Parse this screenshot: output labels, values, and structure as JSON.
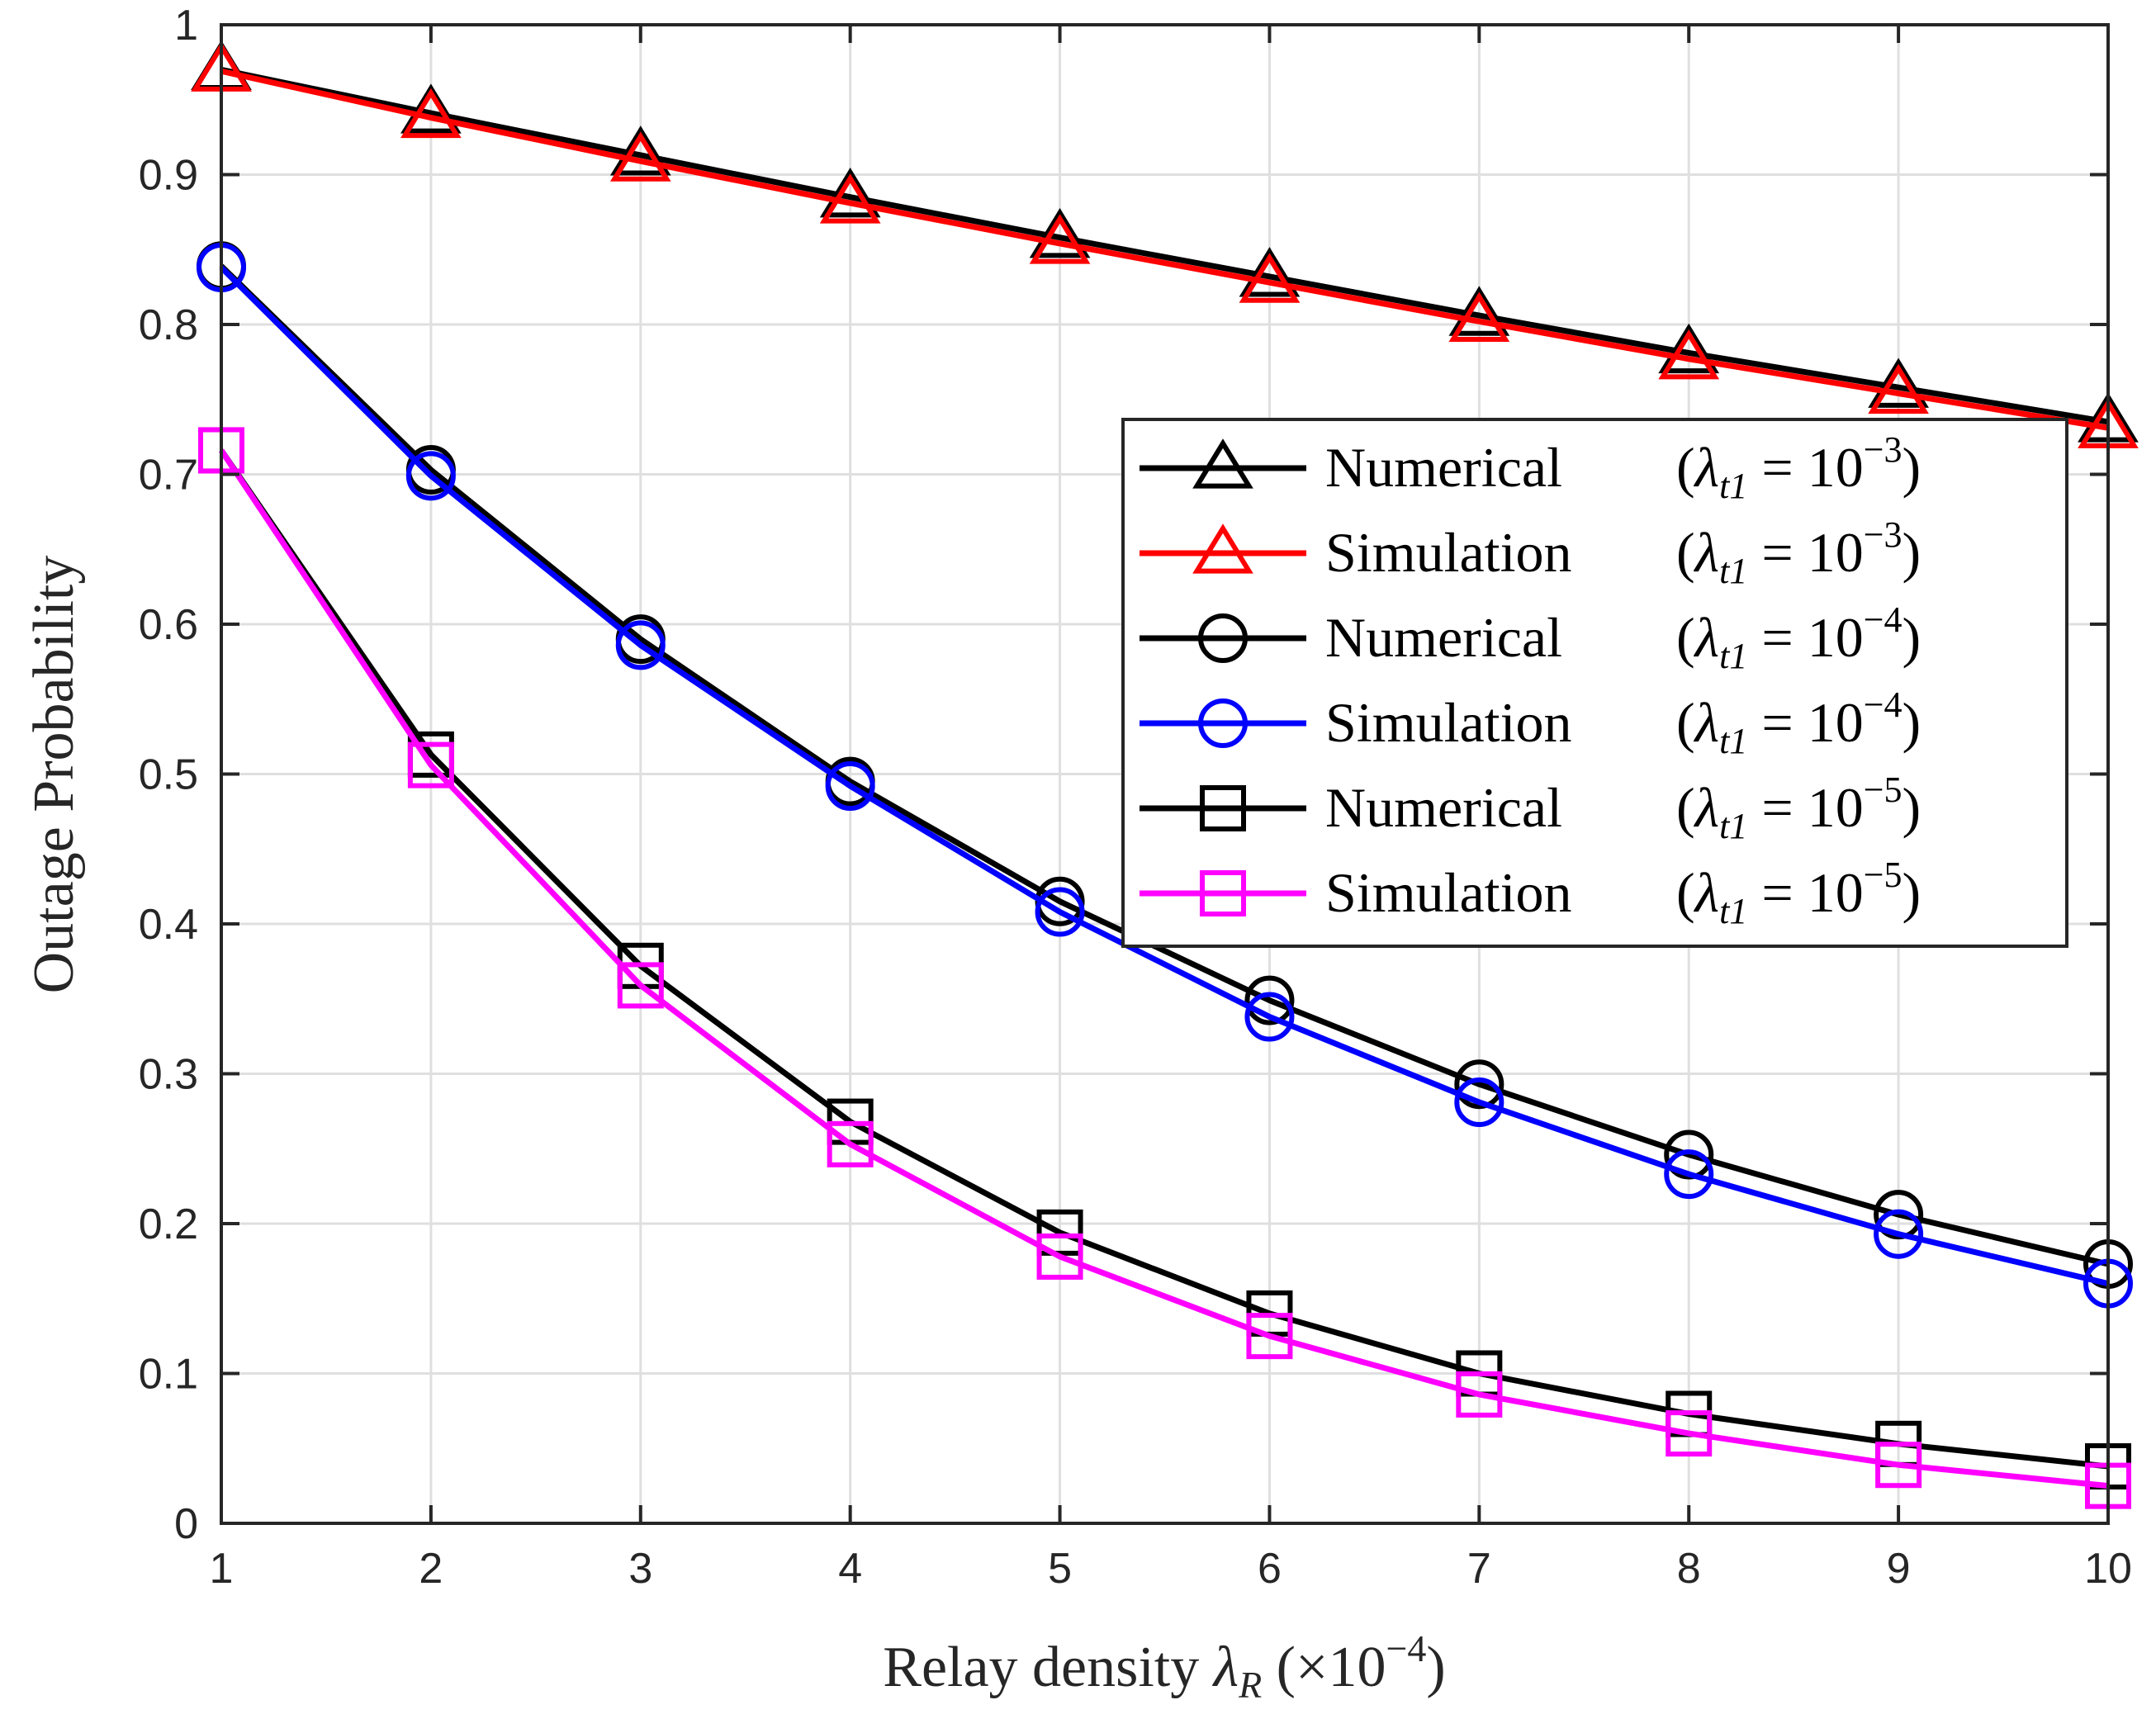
{
  "chart_data": {
    "type": "line",
    "title": "",
    "xlabel": "Relay density λ_R (×10^-4)",
    "xlabel_parts": {
      "main": "Relay density ",
      "lambda": "λ",
      "sub": "R",
      "paren_open": " (×10",
      "sup": "−4",
      "paren_close": ")"
    },
    "ylabel": "Outage Probability",
    "xlim": [
      1,
      10
    ],
    "ylim": [
      0,
      1
    ],
    "xticks": [
      "1",
      "2",
      "3",
      "4",
      "5",
      "6",
      "7",
      "8",
      "9",
      "10"
    ],
    "yticks": [
      "0",
      "0.1",
      "0.2",
      "0.3",
      "0.4",
      "0.5",
      "0.6",
      "0.7",
      "0.8",
      "0.9",
      "1"
    ],
    "grid": true,
    "legend_position": "center-right",
    "x": [
      1,
      2,
      3,
      4,
      5,
      6,
      7,
      8,
      9,
      10
    ],
    "series": [
      {
        "name": "Numerical  (λt1 = 10^-3)",
        "label_main": "Numerical",
        "sup": "−3",
        "marker": "triangle",
        "color": "#000000",
        "values": [
          0.97,
          0.941,
          0.913,
          0.885,
          0.858,
          0.832,
          0.806,
          0.781,
          0.758,
          0.735
        ]
      },
      {
        "name": "Simulation (λt1 = 10^-3)",
        "label_main": "Simulation",
        "sup": "−3",
        "marker": "triangle",
        "color": "#ff0000",
        "values": [
          0.969,
          0.938,
          0.909,
          0.881,
          0.854,
          0.828,
          0.802,
          0.777,
          0.754,
          0.731
        ]
      },
      {
        "name": "Numerical  (λt1 = 10^-4)",
        "label_main": "Numerical",
        "sup": "−4",
        "marker": "circle",
        "color": "#000000",
        "values": [
          0.839,
          0.703,
          0.59,
          0.495,
          0.415,
          0.349,
          0.293,
          0.246,
          0.206,
          0.173
        ]
      },
      {
        "name": "Simulation (λt1 = 10^-4)",
        "label_main": "Simulation",
        "sup": "−4",
        "marker": "circle",
        "color": "#0000ff",
        "values": [
          0.838,
          0.699,
          0.586,
          0.492,
          0.408,
          0.338,
          0.281,
          0.233,
          0.193,
          0.16
        ]
      },
      {
        "name": "Numerical  (λt1 = 10^-5)",
        "label_main": "Numerical",
        "sup": "−5",
        "marker": "square",
        "color": "#000000",
        "values": [
          0.716,
          0.513,
          0.372,
          0.268,
          0.194,
          0.14,
          0.1,
          0.073,
          0.053,
          0.038
        ]
      },
      {
        "name": "Simulation (λt1 = 10^-5)",
        "label_main": "Simulation",
        "sup": "−5",
        "marker": "square",
        "color": "#ff00ff",
        "values": [
          0.716,
          0.506,
          0.359,
          0.253,
          0.178,
          0.125,
          0.086,
          0.06,
          0.039,
          0.025
        ]
      }
    ]
  }
}
